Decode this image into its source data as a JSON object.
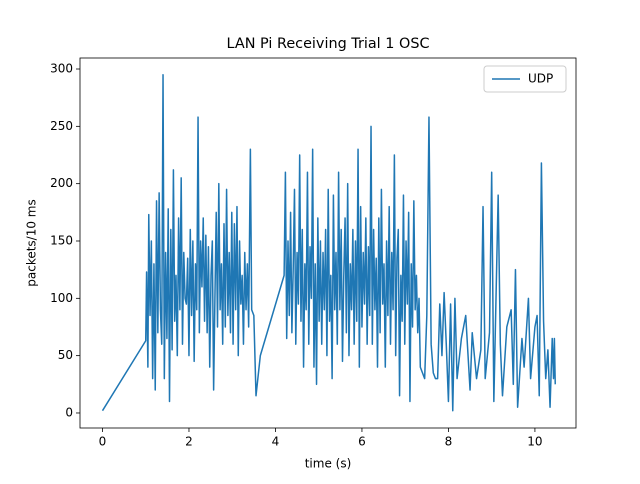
{
  "chart_data": {
    "type": "line",
    "title": "LAN Pi Receiving Trial 1 OSC",
    "x_label": "time (s)",
    "y_label": "packets/10 ms",
    "xlim": [
      -0.52,
      10.95
    ],
    "ylim": [
      -13.1,
      309.6
    ],
    "xticks": [
      0,
      2,
      4,
      6,
      8,
      10
    ],
    "yticks": [
      0,
      50,
      100,
      150,
      200,
      250,
      300
    ],
    "legend": "upper right",
    "grid": false,
    "x": [
      0,
      1.0,
      1.02,
      1.05,
      1.07,
      1.1,
      1.13,
      1.16,
      1.19,
      1.22,
      1.25,
      1.28,
      1.31,
      1.34,
      1.37,
      1.4,
      1.43,
      1.46,
      1.49,
      1.52,
      1.55,
      1.58,
      1.61,
      1.64,
      1.67,
      1.7,
      1.73,
      1.76,
      1.79,
      1.82,
      1.85,
      1.88,
      1.91,
      1.94,
      1.97,
      2.0,
      2.03,
      2.06,
      2.09,
      2.12,
      2.15,
      2.18,
      2.21,
      2.24,
      2.27,
      2.3,
      2.33,
      2.36,
      2.39,
      2.42,
      2.45,
      2.48,
      2.51,
      2.54,
      2.57,
      2.6,
      2.63,
      2.66,
      2.69,
      2.72,
      2.75,
      2.78,
      2.81,
      2.84,
      2.87,
      2.9,
      2.93,
      2.96,
      2.99,
      3.02,
      3.05,
      3.08,
      3.11,
      3.14,
      3.17,
      3.2,
      3.23,
      3.26,
      3.29,
      3.32,
      3.35,
      3.38,
      3.42,
      3.45,
      3.5,
      3.55,
      3.65,
      4.2,
      4.23,
      4.26,
      4.29,
      4.32,
      4.35,
      4.38,
      4.41,
      4.44,
      4.47,
      4.5,
      4.53,
      4.56,
      4.59,
      4.62,
      4.65,
      4.68,
      4.71,
      4.74,
      4.77,
      4.8,
      4.83,
      4.86,
      4.89,
      4.92,
      4.95,
      4.98,
      5.01,
      5.04,
      5.07,
      5.1,
      5.13,
      5.16,
      5.19,
      5.22,
      5.25,
      5.28,
      5.31,
      5.34,
      5.37,
      5.4,
      5.43,
      5.46,
      5.49,
      5.52,
      5.55,
      5.58,
      5.61,
      5.64,
      5.67,
      5.7,
      5.73,
      5.76,
      5.79,
      5.82,
      5.85,
      5.88,
      5.91,
      5.94,
      5.97,
      6.0,
      6.03,
      6.06,
      6.09,
      6.12,
      6.15,
      6.18,
      6.21,
      6.24,
      6.27,
      6.3,
      6.33,
      6.36,
      6.39,
      6.42,
      6.45,
      6.48,
      6.51,
      6.54,
      6.57,
      6.6,
      6.63,
      6.66,
      6.69,
      6.72,
      6.75,
      6.78,
      6.81,
      6.84,
      6.87,
      6.9,
      6.93,
      6.96,
      6.99,
      7.02,
      7.05,
      7.08,
      7.11,
      7.14,
      7.17,
      7.2,
      7.23,
      7.26,
      7.29,
      7.32,
      7.35,
      7.4,
      7.45,
      7.5,
      7.55,
      7.6,
      7.65,
      7.7,
      7.75,
      7.8,
      7.85,
      7.9,
      7.95,
      8.0,
      8.05,
      8.1,
      8.15,
      8.2,
      8.3,
      8.4,
      8.5,
      8.55,
      8.65,
      8.75,
      8.8,
      8.85,
      8.95,
      9.0,
      9.05,
      9.1,
      9.15,
      9.2,
      9.25,
      9.35,
      9.45,
      9.5,
      9.55,
      9.6,
      9.7,
      9.75,
      9.85,
      9.9,
      10.0,
      10.05,
      10.1,
      10.15,
      10.2,
      10.25,
      10.3,
      10.35,
      10.4,
      10.43,
      10.45,
      10.47
    ],
    "series": [
      {
        "name": "UDP",
        "color": "#1f77b4",
        "values": [
          2,
          63,
          123,
          40,
          173,
          85,
          150,
          30,
          130,
          20,
          185,
          70,
          192,
          90,
          60,
          295,
          30,
          140,
          65,
          178,
          10,
          160,
          55,
          212,
          80,
          120,
          50,
          170,
          90,
          205,
          60,
          140,
          100,
          95,
          135,
          50,
          160,
          85,
          150,
          45,
          130,
          90,
          258,
          70,
          150,
          110,
          170,
          80,
          155,
          70,
          145,
          40,
          120,
          150,
          20,
          100,
          175,
          75,
          200,
          90,
          130,
          60,
          165,
          75,
          195,
          85,
          140,
          70,
          175,
          60,
          165,
          90,
          180,
          50,
          150,
          95,
          120,
          60,
          140,
          90,
          130,
          75,
          230,
          90,
          85,
          15,
          50,
          120,
          210,
          65,
          150,
          85,
          175,
          70,
          125,
          195,
          60,
          140,
          95,
          225,
          80,
          160,
          40,
          130,
          90,
          210,
          60,
          145,
          100,
          230,
          40,
          130,
          25,
          170,
          80,
          150,
          60,
          140,
          90,
          160,
          50,
          195,
          80,
          120,
          30,
          190,
          90,
          140,
          60,
          210,
          90,
          160,
          45,
          120,
          170,
          70,
          200,
          50,
          130,
          90,
          160,
          60,
          150,
          80,
          230,
          40,
          180,
          75,
          140,
          95,
          170,
          60,
          145,
          85,
          250,
          60,
          160,
          90,
          135,
          40,
          170,
          70,
          195,
          95,
          130,
          40,
          150,
          85,
          180,
          60,
          140,
          90,
          225,
          50,
          135,
          160,
          15,
          120,
          80,
          190,
          60,
          150,
          95,
          175,
          10,
          130,
          75,
          185,
          90,
          120,
          70,
          100,
          40,
          35,
          30,
          85,
          258,
          60,
          35,
          30,
          30,
          95,
          50,
          105,
          60,
          10,
          95,
          2,
          100,
          30,
          65,
          85,
          20,
          70,
          30,
          55,
          180,
          30,
          70,
          210,
          10,
          100,
          190,
          60,
          15,
          75,
          90,
          25,
          125,
          5,
          65,
          40,
          100,
          30,
          75,
          85,
          15,
          218,
          80,
          30,
          55,
          5,
          65,
          30,
          65,
          25
        ]
      }
    ]
  }
}
